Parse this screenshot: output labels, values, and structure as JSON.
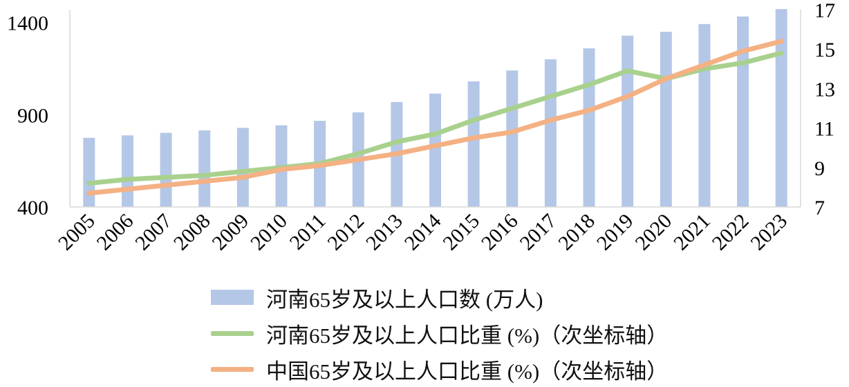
{
  "chart_data": {
    "type": "bar+line",
    "categories": [
      "2005",
      "2006",
      "2007",
      "2008",
      "2009",
      "2010",
      "2011",
      "2012",
      "2013",
      "2014",
      "2015",
      "2016",
      "2017",
      "2018",
      "2019",
      "2020",
      "2021",
      "2022",
      "2023"
    ],
    "series": [
      {
        "name": "河南65岁及以上人口数 (万人)",
        "type": "bar",
        "axis": "left",
        "color": "#b4c7e7",
        "values": [
          775,
          788,
          802,
          815,
          829,
          843,
          867,
          913,
          969,
          1015,
          1081,
          1140,
          1201,
          1260,
          1329,
          1350,
          1392,
          1433,
          1473
        ]
      },
      {
        "name": "河南65岁及以上人口比重 (%)（次坐标轴）",
        "type": "line",
        "axis": "right",
        "color": "#a9d18e",
        "values": [
          8.2,
          8.4,
          8.5,
          8.6,
          8.8,
          9.0,
          9.2,
          9.7,
          10.3,
          10.7,
          11.4,
          12.0,
          12.6,
          13.2,
          13.9,
          13.5,
          14.0,
          14.3,
          14.8
        ]
      },
      {
        "name": "中国65岁及以上人口比重 (%)（次坐标轴）",
        "type": "line",
        "axis": "right",
        "color": "#f4b183",
        "values": [
          7.7,
          7.9,
          8.1,
          8.3,
          8.5,
          8.9,
          9.1,
          9.4,
          9.7,
          10.1,
          10.5,
          10.8,
          11.4,
          11.9,
          12.6,
          13.5,
          14.2,
          14.9,
          15.4
        ]
      }
    ],
    "y_left": {
      "ylim": [
        400,
        1400
      ],
      "ticks": [
        400,
        900,
        1400
      ],
      "ylim_max": 1400
    },
    "y_right": {
      "ylim": [
        7,
        17
      ],
      "ticks": [
        7,
        9,
        11,
        13,
        15,
        17
      ]
    },
    "grid": false,
    "legend_position": "bottom"
  }
}
